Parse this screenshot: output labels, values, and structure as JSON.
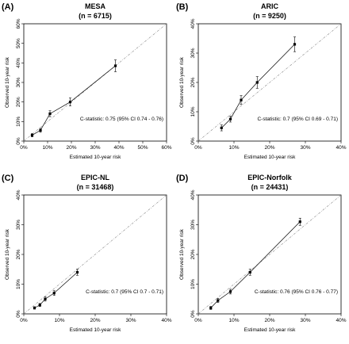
{
  "chart_data": [
    {
      "type": "line",
      "panel": "(A)",
      "title": "MESA",
      "subtitle": "(n = 6715)",
      "xlabel": "Estimated 10-year risk",
      "ylabel": "Observed 10-year risk",
      "xlim": [
        0,
        60
      ],
      "ylim": [
        0,
        60
      ],
      "ticks": [
        0,
        10,
        20,
        30,
        40,
        50,
        60
      ],
      "tick_labels": [
        "0%",
        "10%",
        "20%",
        "30%",
        "40%",
        "50%",
        "60%"
      ],
      "reference_line": "diagonal",
      "annotation": "C-statistic: 0.75 (95% CI 0.74 - 0.76)",
      "points": [
        {
          "x": 3.5,
          "y": 3.0,
          "lo": 2.2,
          "hi": 3.8
        },
        {
          "x": 7.0,
          "y": 5.5,
          "lo": 4.5,
          "hi": 6.5
        },
        {
          "x": 11.0,
          "y": 14.0,
          "lo": 12.5,
          "hi": 15.5
        },
        {
          "x": 19.5,
          "y": 20.0,
          "lo": 18.0,
          "hi": 22.0
        },
        {
          "x": 38.5,
          "y": 38.5,
          "lo": 35.5,
          "hi": 41.5
        }
      ]
    },
    {
      "type": "line",
      "panel": "(B)",
      "title": "ARIC",
      "subtitle": "(n = 9250)",
      "xlabel": "Estimated 10-year risk",
      "ylabel": "Observed 10-year risk",
      "xlim": [
        0,
        40
      ],
      "ylim": [
        0,
        40
      ],
      "ticks": [
        0,
        10,
        20,
        30,
        40
      ],
      "tick_labels": [
        "0%",
        "10%",
        "20%",
        "30%",
        "40%"
      ],
      "reference_line": "diagonal",
      "annotation": "C-statistic: 0.7 (95% CI 0.69 - 0.71)",
      "points": [
        {
          "x": 6.5,
          "y": 4.5,
          "lo": 3.5,
          "hi": 5.5
        },
        {
          "x": 9.0,
          "y": 7.5,
          "lo": 6.5,
          "hi": 8.5
        },
        {
          "x": 12.0,
          "y": 14.0,
          "lo": 12.5,
          "hi": 15.5
        },
        {
          "x": 16.5,
          "y": 20.0,
          "lo": 18.0,
          "hi": 22.0
        },
        {
          "x": 27.0,
          "y": 33.0,
          "lo": 30.5,
          "hi": 35.5
        }
      ]
    },
    {
      "type": "line",
      "panel": "(C)",
      "title": "EPIC-NL",
      "subtitle": "(n = 31468)",
      "xlabel": "Estimated 10-year risk",
      "ylabel": "Observed 10-year risk",
      "xlim": [
        0,
        40
      ],
      "ylim": [
        0,
        40
      ],
      "ticks": [
        0,
        10,
        20,
        30,
        40
      ],
      "tick_labels": [
        "0%",
        "10%",
        "20%",
        "30%",
        "40%"
      ],
      "reference_line": "diagonal",
      "annotation": "C-statistic: 0.7 (95% CI 0.7 - 0.71)",
      "points": [
        {
          "x": 3.0,
          "y": 2.0,
          "lo": 1.6,
          "hi": 2.4
        },
        {
          "x": 4.5,
          "y": 3.0,
          "lo": 2.5,
          "hi": 3.5
        },
        {
          "x": 6.0,
          "y": 5.0,
          "lo": 4.3,
          "hi": 5.7
        },
        {
          "x": 8.5,
          "y": 7.0,
          "lo": 6.2,
          "hi": 7.8
        },
        {
          "x": 15.0,
          "y": 14.0,
          "lo": 13.0,
          "hi": 15.0
        }
      ]
    },
    {
      "type": "line",
      "panel": "(D)",
      "title": "EPIC-Norfolk",
      "subtitle": "(n = 24431)",
      "xlabel": "Estimated 10-year risk",
      "ylabel": "Observed 10-year risk",
      "xlim": [
        0,
        40
      ],
      "ylim": [
        0,
        40
      ],
      "ticks": [
        0,
        10,
        20,
        30,
        40
      ],
      "tick_labels": [
        "0%",
        "10%",
        "20%",
        "30%",
        "40%"
      ],
      "reference_line": "diagonal",
      "annotation": "C-statistic: 0.76 (95% CI 0.76 - 0.77)",
      "points": [
        {
          "x": 3.5,
          "y": 2.0,
          "lo": 1.5,
          "hi": 2.5
        },
        {
          "x": 5.5,
          "y": 4.5,
          "lo": 3.8,
          "hi": 5.2
        },
        {
          "x": 9.0,
          "y": 7.5,
          "lo": 6.7,
          "hi": 8.3
        },
        {
          "x": 14.5,
          "y": 14.0,
          "lo": 13.0,
          "hi": 15.0
        },
        {
          "x": 28.5,
          "y": 31.0,
          "lo": 29.8,
          "hi": 32.2
        }
      ]
    }
  ]
}
